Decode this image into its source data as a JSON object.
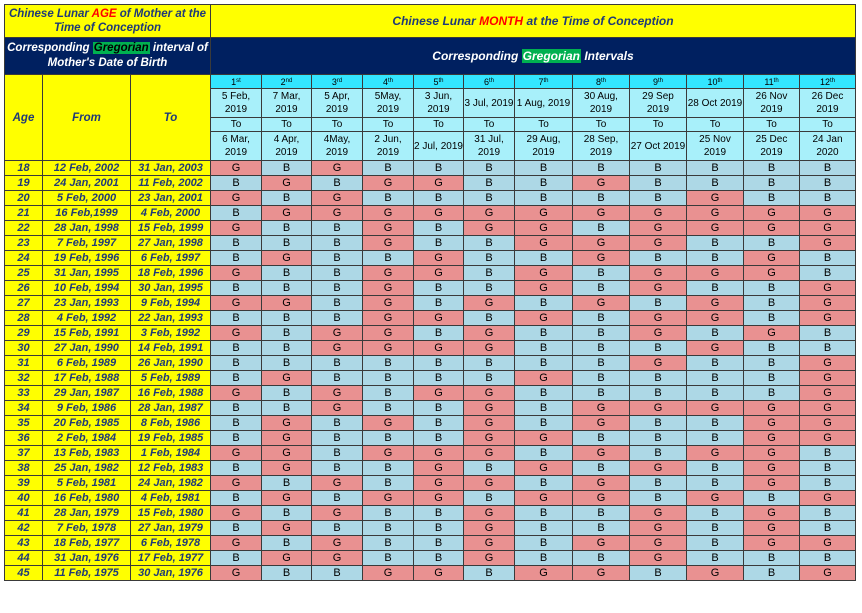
{
  "header": {
    "age_title_pre": "Chinese Lunar ",
    "age_title_hl": "AGE",
    "age_title_post": " of Mother at the Time of Conception",
    "month_title_pre": "Chinese Lunar ",
    "month_title_hl": "MONTH",
    "month_title_post": " at the Time of Conception",
    "greg_interval_pre": "Corresponding ",
    "greg_interval_hl": "Gregorian",
    "greg_interval_post": " interval of Mother's Date of Birth",
    "greg_intervals_pre": "Corresponding ",
    "greg_intervals_hl": "Gregorian",
    "greg_intervals_post": " Intervals",
    "col_age": "Age",
    "col_from": "From",
    "col_to": "To"
  },
  "months": [
    {
      "num": "1",
      "suf": "st",
      "from": "5 Feb, 2019",
      "to_word": "To",
      "to": "6 Mar, 2019"
    },
    {
      "num": "2",
      "suf": "nd",
      "from": "7 Mar, 2019",
      "to_word": "To",
      "to": "4 Apr, 2019"
    },
    {
      "num": "3",
      "suf": "rd",
      "from": "5 Apr, 2019",
      "to_word": "To",
      "to": "4May, 2019"
    },
    {
      "num": "4",
      "suf": "th",
      "from": "5May, 2019",
      "to_word": "To",
      "to": "2 Jun, 2019"
    },
    {
      "num": "5",
      "suf": "th",
      "from": "3 Jun, 2019",
      "to_word": "To",
      "to": "2 Jul, 2019"
    },
    {
      "num": "6",
      "suf": "th",
      "from": "3 Jul, 2019",
      "to_word": "To",
      "to": "31 Jul, 2019"
    },
    {
      "num": "7",
      "suf": "th",
      "from": "1 Aug, 2019",
      "to_word": "To",
      "to": "29 Aug, 2019"
    },
    {
      "num": "8",
      "suf": "th",
      "from": "30 Aug, 2019",
      "to_word": "To",
      "to": "28 Sep, 2019"
    },
    {
      "num": "9",
      "suf": "th",
      "from": "29 Sep 2019",
      "to_word": "To",
      "to": "27 Oct 2019"
    },
    {
      "num": "10",
      "suf": "th",
      "from": "28 Oct 2019",
      "to_word": "To",
      "to": "25 Nov 2019"
    },
    {
      "num": "11",
      "suf": "th",
      "from": "26 Nov 2019",
      "to_word": "To",
      "to": "25 Dec 2019"
    },
    {
      "num": "12",
      "suf": "th",
      "from": "26 Dec 2019",
      "to_word": "To",
      "to": "24 Jan 2020"
    }
  ],
  "rows": [
    {
      "age": "18",
      "from": "12 Feb, 2002",
      "to": "31 Jan, 2003",
      "g": [
        "G",
        "B",
        "G",
        "B",
        "B",
        "B",
        "B",
        "B",
        "B",
        "B",
        "B",
        "B"
      ]
    },
    {
      "age": "19",
      "from": "24 Jan, 2001",
      "to": "11 Feb, 2002",
      "g": [
        "B",
        "G",
        "B",
        "G",
        "G",
        "B",
        "B",
        "G",
        "B",
        "B",
        "B",
        "B"
      ]
    },
    {
      "age": "20",
      "from": "5 Feb, 2000",
      "to": "23 Jan, 2001",
      "g": [
        "G",
        "B",
        "G",
        "B",
        "B",
        "B",
        "B",
        "B",
        "B",
        "G",
        "B",
        "B"
      ]
    },
    {
      "age": "21",
      "from": "16 Feb,1999",
      "to": "4 Feb, 2000",
      "g": [
        "B",
        "G",
        "G",
        "G",
        "G",
        "G",
        "G",
        "G",
        "G",
        "G",
        "G",
        "G"
      ]
    },
    {
      "age": "22",
      "from": "28 Jan, 1998",
      "to": "15 Feb, 1999",
      "g": [
        "G",
        "B",
        "B",
        "G",
        "B",
        "G",
        "G",
        "B",
        "G",
        "G",
        "G",
        "G"
      ]
    },
    {
      "age": "23",
      "from": "7 Feb, 1997",
      "to": "27 Jan, 1998",
      "g": [
        "B",
        "B",
        "B",
        "G",
        "B",
        "B",
        "G",
        "G",
        "G",
        "B",
        "B",
        "G"
      ]
    },
    {
      "age": "24",
      "from": "19 Feb, 1996",
      "to": "6 Feb, 1997",
      "g": [
        "B",
        "G",
        "B",
        "B",
        "G",
        "B",
        "B",
        "G",
        "B",
        "B",
        "G",
        "B"
      ]
    },
    {
      "age": "25",
      "from": "31 Jan, 1995",
      "to": "18 Feb, 1996",
      "g": [
        "G",
        "B",
        "B",
        "G",
        "G",
        "B",
        "G",
        "B",
        "G",
        "G",
        "G",
        "B"
      ]
    },
    {
      "age": "26",
      "from": "10 Feb, 1994",
      "to": "30 Jan, 1995",
      "g": [
        "B",
        "B",
        "B",
        "G",
        "B",
        "B",
        "G",
        "B",
        "G",
        "B",
        "B",
        "G"
      ]
    },
    {
      "age": "27",
      "from": "23 Jan, 1993",
      "to": "9 Feb, 1994",
      "g": [
        "G",
        "G",
        "B",
        "G",
        "B",
        "G",
        "B",
        "G",
        "B",
        "G",
        "B",
        "G"
      ]
    },
    {
      "age": "28",
      "from": "4 Feb, 1992",
      "to": "22 Jan, 1993",
      "g": [
        "B",
        "B",
        "B",
        "G",
        "G",
        "B",
        "G",
        "B",
        "G",
        "G",
        "B",
        "G"
      ]
    },
    {
      "age": "29",
      "from": "15 Feb, 1991",
      "to": "3 Feb, 1992",
      "g": [
        "G",
        "B",
        "G",
        "G",
        "B",
        "G",
        "B",
        "B",
        "G",
        "B",
        "G",
        "B"
      ]
    },
    {
      "age": "30",
      "from": "27 Jan, 1990",
      "to": "14 Feb, 1991",
      "g": [
        "B",
        "B",
        "G",
        "G",
        "G",
        "G",
        "B",
        "B",
        "B",
        "G",
        "B",
        "B"
      ]
    },
    {
      "age": "31",
      "from": "6 Feb, 1989",
      "to": "26 Jan, 1990",
      "g": [
        "B",
        "B",
        "B",
        "B",
        "B",
        "B",
        "B",
        "B",
        "G",
        "B",
        "B",
        "G"
      ]
    },
    {
      "age": "32",
      "from": "17 Feb, 1988",
      "to": "5 Feb, 1989",
      "g": [
        "B",
        "G",
        "B",
        "B",
        "B",
        "B",
        "G",
        "B",
        "B",
        "B",
        "B",
        "G"
      ]
    },
    {
      "age": "33",
      "from": "29 Jan, 1987",
      "to": "16 Feb, 1988",
      "g": [
        "G",
        "B",
        "G",
        "B",
        "G",
        "G",
        "B",
        "B",
        "B",
        "B",
        "B",
        "G"
      ]
    },
    {
      "age": "34",
      "from": "9 Feb, 1986",
      "to": "28 Jan, 1987",
      "g": [
        "B",
        "B",
        "G",
        "B",
        "B",
        "G",
        "B",
        "G",
        "G",
        "G",
        "G",
        "G"
      ]
    },
    {
      "age": "35",
      "from": "20 Feb, 1985",
      "to": "8 Feb, 1986",
      "g": [
        "B",
        "G",
        "B",
        "G",
        "B",
        "G",
        "B",
        "G",
        "B",
        "B",
        "G",
        "G"
      ]
    },
    {
      "age": "36",
      "from": "2 Feb, 1984",
      "to": "19 Feb, 1985",
      "g": [
        "B",
        "G",
        "B",
        "B",
        "B",
        "G",
        "G",
        "B",
        "B",
        "B",
        "G",
        "G"
      ]
    },
    {
      "age": "37",
      "from": "13 Feb, 1983",
      "to": "1 Feb, 1984",
      "g": [
        "G",
        "G",
        "B",
        "G",
        "G",
        "G",
        "B",
        "G",
        "B",
        "G",
        "G",
        "B"
      ]
    },
    {
      "age": "38",
      "from": "25 Jan, 1982",
      "to": "12 Feb, 1983",
      "g": [
        "B",
        "G",
        "B",
        "B",
        "G",
        "B",
        "G",
        "B",
        "G",
        "B",
        "G",
        "B"
      ]
    },
    {
      "age": "39",
      "from": "5 Feb, 1981",
      "to": "24 Jan, 1982",
      "g": [
        "G",
        "B",
        "G",
        "B",
        "G",
        "G",
        "B",
        "G",
        "B",
        "B",
        "G",
        "B"
      ]
    },
    {
      "age": "40",
      "from": "16 Feb, 1980",
      "to": "4 Feb, 1981",
      "g": [
        "B",
        "G",
        "B",
        "G",
        "G",
        "B",
        "G",
        "G",
        "B",
        "G",
        "B",
        "G"
      ]
    },
    {
      "age": "41",
      "from": "28 Jan, 1979",
      "to": "15 Feb, 1980",
      "g": [
        "G",
        "B",
        "G",
        "B",
        "B",
        "G",
        "B",
        "B",
        "G",
        "B",
        "G",
        "B"
      ]
    },
    {
      "age": "42",
      "from": "7 Feb, 1978",
      "to": "27 Jan, 1979",
      "g": [
        "B",
        "G",
        "B",
        "B",
        "B",
        "G",
        "B",
        "B",
        "G",
        "B",
        "G",
        "B"
      ]
    },
    {
      "age": "43",
      "from": "18 Feb, 1977",
      "to": "6 Feb, 1978",
      "g": [
        "G",
        "B",
        "G",
        "B",
        "B",
        "G",
        "B",
        "G",
        "G",
        "B",
        "G",
        "G"
      ]
    },
    {
      "age": "44",
      "from": "31 Jan, 1976",
      "to": "17 Feb, 1977",
      "g": [
        "B",
        "G",
        "G",
        "B",
        "B",
        "G",
        "B",
        "B",
        "G",
        "B",
        "B",
        "B"
      ]
    },
    {
      "age": "45",
      "from": "11 Feb, 1975",
      "to": "30 Jan, 1976",
      "g": [
        "G",
        "B",
        "B",
        "G",
        "G",
        "B",
        "G",
        "G",
        "B",
        "G",
        "B",
        "G"
      ]
    }
  ],
  "colors": {
    "boy": "#add8e6",
    "girl": "#e99191",
    "header_yellow": "#ffff00",
    "header_navy": "#002060",
    "month_header_cyan": "#33e6ff",
    "date_cell_cyan": "#a8f0fa",
    "highlight_green": "#00b050",
    "highlight_red": "#ff0000"
  }
}
